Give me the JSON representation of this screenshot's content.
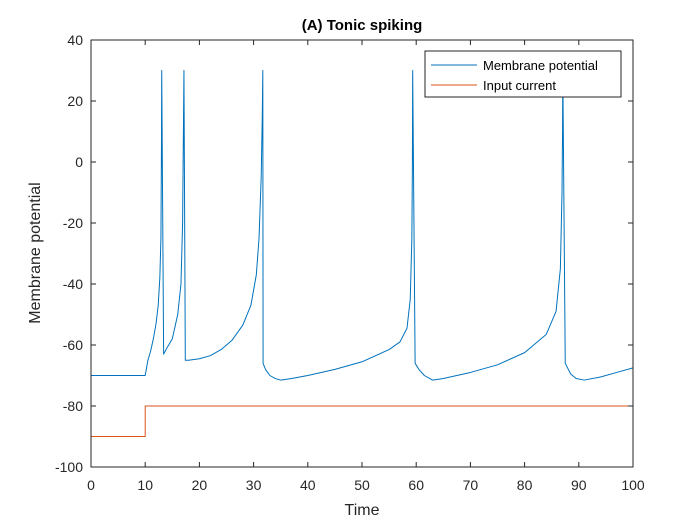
{
  "chart_data": {
    "type": "line",
    "title": "(A) Tonic spiking",
    "xlabel": "Time",
    "ylabel": "Membrane potential",
    "xlim": [
      0,
      100
    ],
    "ylim": [
      -100,
      40
    ],
    "xticks": [
      0,
      10,
      20,
      30,
      40,
      50,
      60,
      70,
      80,
      90,
      100
    ],
    "yticks": [
      -100,
      -80,
      -60,
      -40,
      -20,
      0,
      20,
      40
    ],
    "grid": false,
    "legend_position": "top-right",
    "series": [
      {
        "name": "Membrane potential",
        "color": "#0072BD",
        "x": [
          0,
          10,
          10.5,
          11,
          11.5,
          12,
          12.4,
          12.7,
          12.9,
          13.0,
          13.05,
          13.4,
          14,
          15,
          16,
          16.6,
          16.9,
          17.05,
          17.15,
          17.4,
          18,
          20,
          22,
          24,
          26,
          28,
          29.5,
          30.5,
          31.0,
          31.4,
          31.6,
          31.7,
          31.75,
          32.2,
          33,
          34,
          35,
          37,
          40,
          45,
          50,
          55,
          57,
          58.3,
          58.9,
          59.2,
          59.3,
          59.35,
          59.8,
          60.5,
          61.5,
          63,
          65,
          70,
          75,
          80,
          84,
          85.8,
          86.6,
          86.9,
          87.0,
          87.05,
          87.5,
          88.5,
          89.5,
          91,
          94,
          97,
          100
        ],
        "y": [
          -70,
          -70,
          -65,
          -62,
          -58,
          -53,
          -47,
          -38,
          -25,
          5,
          30,
          -63,
          -61,
          -58,
          -50,
          -40,
          -20,
          10,
          30,
          -65,
          -65,
          -64.5,
          -63.5,
          -61.5,
          -58.5,
          -53.5,
          -47,
          -37,
          -25,
          -5,
          15,
          30,
          -66,
          -68,
          -70,
          -71,
          -71.5,
          -71,
          -70,
          -68,
          -65.5,
          -61.5,
          -59,
          -54.5,
          -45,
          -25,
          0,
          30,
          -66,
          -68,
          -70,
          -71.5,
          -71,
          -69,
          -66.5,
          -62.5,
          -56.5,
          -49,
          -35,
          -10,
          10,
          30,
          -66,
          -69.5,
          -71,
          -71.5,
          -70.5,
          -69,
          -67.5
        ]
      },
      {
        "name": "Input current",
        "color": "#D95319",
        "x": [
          0,
          10,
          10,
          100
        ],
        "y": [
          -90,
          -90,
          -80,
          -80
        ]
      }
    ]
  }
}
